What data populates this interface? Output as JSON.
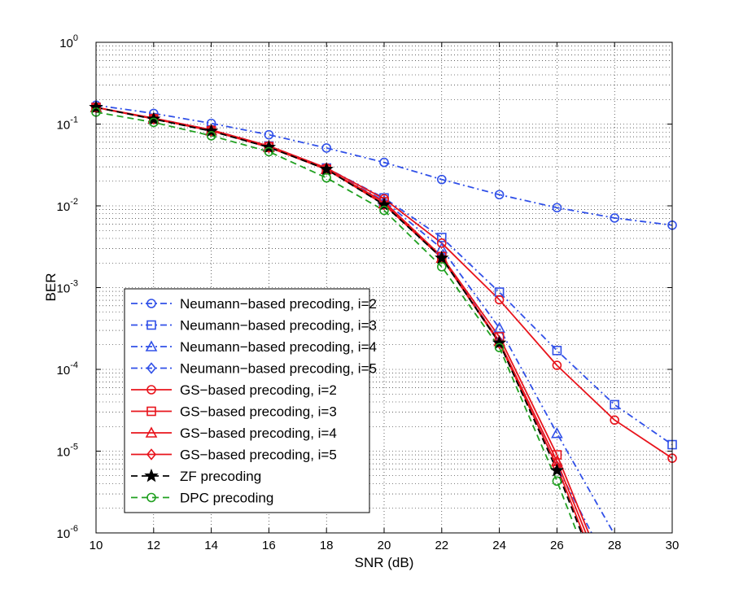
{
  "chart_data": {
    "type": "line",
    "title": "",
    "xlabel": "SNR (dB)",
    "ylabel": "BER",
    "yscale": "log",
    "xlim": [
      10,
      30
    ],
    "ylim": [
      1e-06,
      1
    ],
    "grid": true,
    "legend_position": "bottom-left",
    "x_ticks": [
      "10",
      "12",
      "14",
      "16",
      "18",
      "20",
      "22",
      "24",
      "26",
      "28",
      "30"
    ],
    "y_ticks": [
      {
        "base": "10",
        "exp": "0"
      },
      {
        "base": "10",
        "exp": "-1"
      },
      {
        "base": "10",
        "exp": "-2"
      },
      {
        "base": "10",
        "exp": "-3"
      },
      {
        "base": "10",
        "exp": "-4"
      },
      {
        "base": "10",
        "exp": "-5"
      },
      {
        "base": "10",
        "exp": "-6"
      }
    ],
    "series": [
      {
        "name": "Neumann−based precoding, i=2",
        "color": "#3050e8",
        "dash": "dashdot",
        "marker": "circle",
        "x": [
          10,
          12,
          14,
          16,
          18,
          20,
          22,
          24,
          26,
          28,
          30
        ],
        "y": [
          0.17,
          0.135,
          0.102,
          0.074,
          0.051,
          0.034,
          0.021,
          0.0137,
          0.0095,
          0.0071,
          0.0058
        ]
      },
      {
        "name": "Neumann−based precoding, i=3",
        "color": "#3050e8",
        "dash": "dashdot",
        "marker": "square",
        "x": [
          10,
          12,
          14,
          16,
          18,
          20,
          22,
          24,
          26,
          28,
          30
        ],
        "y": [
          0.16,
          0.118,
          0.085,
          0.054,
          0.029,
          0.0125,
          0.0041,
          0.00088,
          0.00017,
          3.7e-05,
          1.2e-05
        ]
      },
      {
        "name": "Neumann−based precoding, i=4",
        "color": "#3050e8",
        "dash": "dashdot",
        "marker": "triangle",
        "x": [
          10,
          12,
          14,
          16,
          18,
          20,
          22,
          24,
          26,
          28
        ],
        "y": [
          0.16,
          0.116,
          0.083,
          0.053,
          0.028,
          0.0115,
          0.003,
          0.00032,
          1.65e-05,
          9.5e-07
        ]
      },
      {
        "name": "Neumann−based precoding, i=5",
        "color": "#3050e8",
        "dash": "dashdot",
        "marker": "diamond",
        "x": [
          10,
          12,
          14,
          16,
          18,
          20,
          22,
          24,
          26,
          27.2
        ],
        "y": [
          0.16,
          0.116,
          0.083,
          0.052,
          0.028,
          0.0105,
          0.0024,
          0.00022,
          6.5e-06,
          1e-06
        ]
      },
      {
        "name": "GS−based precoding, i=2",
        "color": "#e8141c",
        "dash": "solid",
        "marker": "circle",
        "x": [
          10,
          12,
          14,
          16,
          18,
          20,
          22,
          24,
          26,
          28,
          30
        ],
        "y": [
          0.16,
          0.118,
          0.085,
          0.054,
          0.029,
          0.0122,
          0.0035,
          0.00071,
          0.000112,
          2.4e-05,
          8.2e-06
        ]
      },
      {
        "name": "GS−based precoding, i=3",
        "color": "#e8141c",
        "dash": "solid",
        "marker": "square",
        "x": [
          10,
          12,
          14,
          16,
          18,
          20,
          22,
          24,
          26,
          27.1
        ],
        "y": [
          0.16,
          0.116,
          0.083,
          0.053,
          0.028,
          0.0112,
          0.0024,
          0.00025,
          9e-06,
          1e-06
        ]
      },
      {
        "name": "GS−based precoding, i=4",
        "color": "#e8141c",
        "dash": "solid",
        "marker": "triangle",
        "x": [
          10,
          12,
          14,
          16,
          18,
          20,
          22,
          24,
          26,
          27.0
        ],
        "y": [
          0.16,
          0.116,
          0.083,
          0.052,
          0.028,
          0.0106,
          0.0023,
          0.00022,
          7.5e-06,
          1e-06
        ]
      },
      {
        "name": "GS−based precoding, i=5",
        "color": "#e8141c",
        "dash": "solid",
        "marker": "diamond",
        "x": [
          10,
          12,
          14,
          16,
          18,
          20,
          22,
          24,
          26,
          26.9
        ],
        "y": [
          0.16,
          0.116,
          0.083,
          0.052,
          0.028,
          0.0104,
          0.0023,
          0.00021,
          6.5e-06,
          1e-06
        ]
      },
      {
        "name": "ZF precoding",
        "color": "#000000",
        "dash": "dashed",
        "marker": "star",
        "x": [
          10,
          12,
          14,
          16,
          18,
          20,
          22,
          24,
          26,
          26.85
        ],
        "y": [
          0.16,
          0.115,
          0.082,
          0.052,
          0.028,
          0.0103,
          0.0023,
          0.00021,
          5.8e-06,
          1e-06
        ]
      },
      {
        "name": "DPC precoding",
        "color": "#20a020",
        "dash": "dashed",
        "marker": "circle",
        "x": [
          10,
          12,
          14,
          16,
          18,
          20,
          22,
          24,
          26,
          26.7
        ],
        "y": [
          0.14,
          0.105,
          0.072,
          0.046,
          0.022,
          0.0088,
          0.0018,
          0.000185,
          4.3e-06,
          1e-06
        ]
      }
    ]
  }
}
